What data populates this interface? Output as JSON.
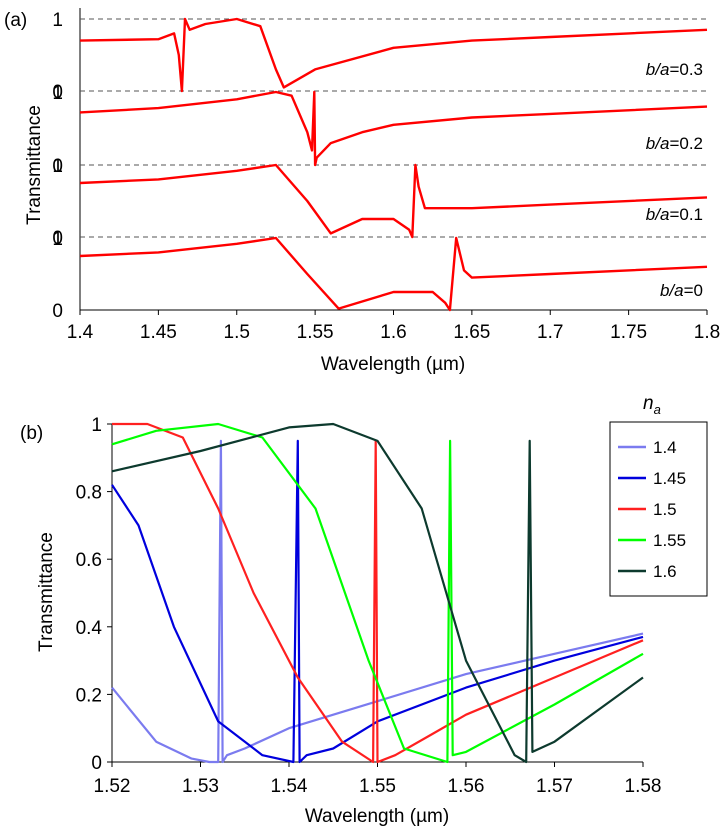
{
  "chart_data": [
    {
      "panel_label": "(a)",
      "type": "line",
      "xlabel": "Wavelength (µm)",
      "ylabel": "Transmittance",
      "xlim": [
        1.4,
        1.8
      ],
      "x_ticks": [
        "1.4",
        "1.45",
        "1.5",
        "1.55",
        "1.6",
        "1.65",
        "1.7",
        "1.75",
        "1.8"
      ],
      "y_tick_labels": [
        "1",
        "0"
      ],
      "color": "#ff0000",
      "grid": "dashed baselines between stacked curves",
      "series": [
        {
          "label_italic": "b/a",
          "label_value": "=0.3",
          "x": [
            1.4,
            1.45,
            1.46,
            1.463,
            1.465,
            1.467,
            1.47,
            1.48,
            1.5,
            1.515,
            1.525,
            1.53,
            1.55,
            1.6,
            1.65,
            1.7,
            1.75,
            1.8
          ],
          "y": [
            0.7,
            0.72,
            0.8,
            0.5,
            0.0,
            1.0,
            0.85,
            0.93,
            1.0,
            0.9,
            0.3,
            0.05,
            0.3,
            0.6,
            0.7,
            0.75,
            0.8,
            0.85
          ]
        },
        {
          "label_italic": "b/a",
          "label_value": "=0.2",
          "x": [
            1.4,
            1.45,
            1.5,
            1.525,
            1.535,
            1.545,
            1.548,
            1.5495,
            1.55,
            1.551,
            1.56,
            1.58,
            1.6,
            1.65,
            1.7,
            1.8
          ],
          "y": [
            0.72,
            0.78,
            0.9,
            1.0,
            0.95,
            0.45,
            0.2,
            1.0,
            0.0,
            0.1,
            0.3,
            0.45,
            0.55,
            0.65,
            0.7,
            0.8
          ]
        },
        {
          "label_italic": "b/a",
          "label_value": "=0.1",
          "x": [
            1.4,
            1.45,
            1.5,
            1.525,
            1.545,
            1.56,
            1.58,
            1.6,
            1.61,
            1.612,
            1.614,
            1.616,
            1.62,
            1.65,
            1.7,
            1.8
          ],
          "y": [
            0.75,
            0.8,
            0.92,
            1.0,
            0.5,
            0.05,
            0.25,
            0.25,
            0.1,
            0.0,
            1.0,
            0.7,
            0.4,
            0.4,
            0.45,
            0.55
          ]
        },
        {
          "label_italic": "b/a",
          "label_value": "=0",
          "x": [
            1.4,
            1.45,
            1.5,
            1.525,
            1.545,
            1.565,
            1.6,
            1.625,
            1.633,
            1.636,
            1.64,
            1.645,
            1.65,
            1.7,
            1.8
          ],
          "y": [
            0.75,
            0.8,
            0.92,
            1.0,
            0.5,
            0.02,
            0.25,
            0.25,
            0.1,
            0.0,
            1.0,
            0.55,
            0.45,
            0.5,
            0.6
          ]
        }
      ]
    },
    {
      "panel_label": "(b)",
      "type": "line",
      "xlabel": "Wavelength (µm)",
      "ylabel": "Transmittance",
      "xlim": [
        1.52,
        1.58
      ],
      "ylim": [
        0,
        1
      ],
      "x_ticks": [
        "1.52",
        "1.53",
        "1.54",
        "1.55",
        "1.56",
        "1.57",
        "1.58"
      ],
      "y_ticks": [
        "0",
        "0.2",
        "0.4",
        "0.6",
        "0.8",
        "1"
      ],
      "legend_title_base": "n",
      "legend_title_sub": "a",
      "legend_position": "top-right",
      "series": [
        {
          "name": "1.4",
          "color": "#7b7bef",
          "x": [
            1.52,
            1.525,
            1.529,
            1.531,
            1.532,
            1.5323,
            1.5325,
            1.533,
            1.535,
            1.54,
            1.55,
            1.56,
            1.57,
            1.58
          ],
          "y": [
            0.22,
            0.06,
            0.01,
            0.0,
            0.0,
            0.95,
            0.0,
            0.02,
            0.04,
            0.1,
            0.18,
            0.26,
            0.32,
            0.38
          ]
        },
        {
          "name": "1.45",
          "color": "#0000dd",
          "x": [
            1.52,
            1.523,
            1.527,
            1.532,
            1.537,
            1.5405,
            1.541,
            1.5412,
            1.542,
            1.545,
            1.55,
            1.56,
            1.57,
            1.58
          ],
          "y": [
            0.82,
            0.7,
            0.4,
            0.12,
            0.02,
            0.0,
            0.95,
            0.0,
            0.02,
            0.04,
            0.12,
            0.22,
            0.3,
            0.37
          ]
        },
        {
          "name": "1.5",
          "color": "#ff2020",
          "x": [
            1.52,
            1.524,
            1.528,
            1.532,
            1.536,
            1.541,
            1.546,
            1.5495,
            1.5498,
            1.55,
            1.552,
            1.556,
            1.56,
            1.57,
            1.58
          ],
          "y": [
            1.0,
            1.0,
            0.96,
            0.75,
            0.5,
            0.25,
            0.06,
            0.0,
            0.95,
            0.0,
            0.02,
            0.08,
            0.14,
            0.25,
            0.36
          ]
        },
        {
          "name": "1.55",
          "color": "#00ff00",
          "x": [
            1.52,
            1.525,
            1.532,
            1.537,
            1.543,
            1.549,
            1.553,
            1.5579,
            1.5582,
            1.5585,
            1.56,
            1.57,
            1.58
          ],
          "y": [
            0.94,
            0.98,
            1.0,
            0.96,
            0.75,
            0.3,
            0.04,
            0.0,
            0.95,
            0.02,
            0.03,
            0.17,
            0.32
          ]
        },
        {
          "name": "1.6",
          "color": "#0d3a2e",
          "x": [
            1.52,
            1.53,
            1.54,
            1.545,
            1.55,
            1.555,
            1.56,
            1.5655,
            1.5668,
            1.5672,
            1.5675,
            1.57,
            1.58
          ],
          "y": [
            0.86,
            0.92,
            0.99,
            1.0,
            0.95,
            0.75,
            0.3,
            0.02,
            0.0,
            0.95,
            0.03,
            0.06,
            0.25
          ]
        }
      ]
    }
  ]
}
